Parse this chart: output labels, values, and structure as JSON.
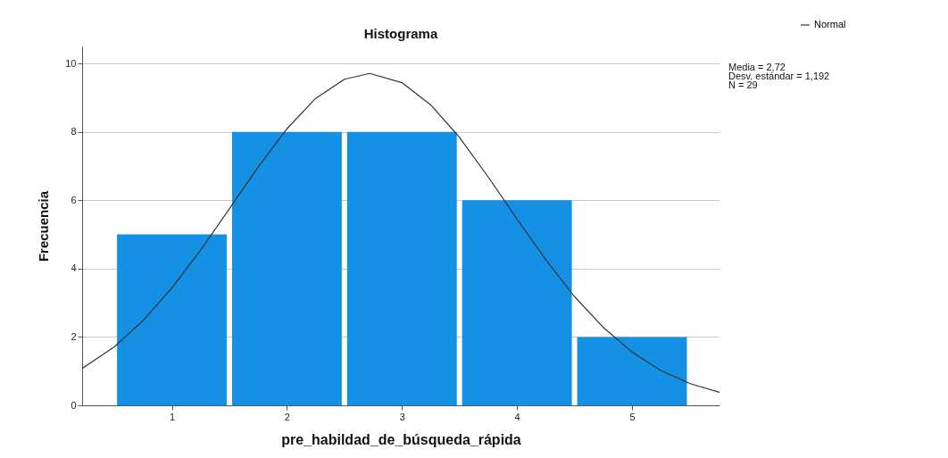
{
  "chart_data": {
    "type": "histogram",
    "title": "Histograma",
    "xlabel": "pre_habildad_de_búsqueda_rápida",
    "ylabel": "Frecuencia",
    "bins": [
      0.5,
      1.5,
      2.5,
      3.5,
      4.5,
      5.5
    ],
    "series": [
      {
        "color": "#1490e4",
        "values": [
          5,
          8,
          8,
          6,
          2
        ]
      },
      {
        "type": "line",
        "name": "Normal",
        "color": "#333333",
        "x": [
          0.22,
          0.5,
          0.75,
          1.0,
          1.25,
          1.5,
          1.75,
          2.0,
          2.25,
          2.5,
          2.72,
          3.0,
          3.25,
          3.5,
          3.75,
          4.0,
          4.25,
          4.5,
          4.75,
          5.0,
          5.25,
          5.5,
          5.76
        ],
        "values": [
          1.08,
          1.71,
          2.48,
          3.43,
          4.54,
          5.75,
          6.97,
          8.09,
          8.98,
          9.54,
          9.71,
          9.44,
          8.79,
          7.84,
          6.68,
          5.45,
          4.26,
          3.18,
          2.28,
          1.56,
          1.02,
          0.64,
          0.38
        ]
      }
    ],
    "annotations": [
      "Media = 2,72",
      "Desv. estándar = 1,192",
      "N = 29"
    ],
    "xlim": [
      0.22,
      5.76
    ],
    "xticks": [
      1,
      2,
      3,
      4,
      5
    ],
    "ylim": [
      0,
      10.5
    ],
    "yticks": [
      0,
      2,
      4,
      6,
      8,
      10
    ],
    "grid": "y",
    "legend": "top right"
  }
}
